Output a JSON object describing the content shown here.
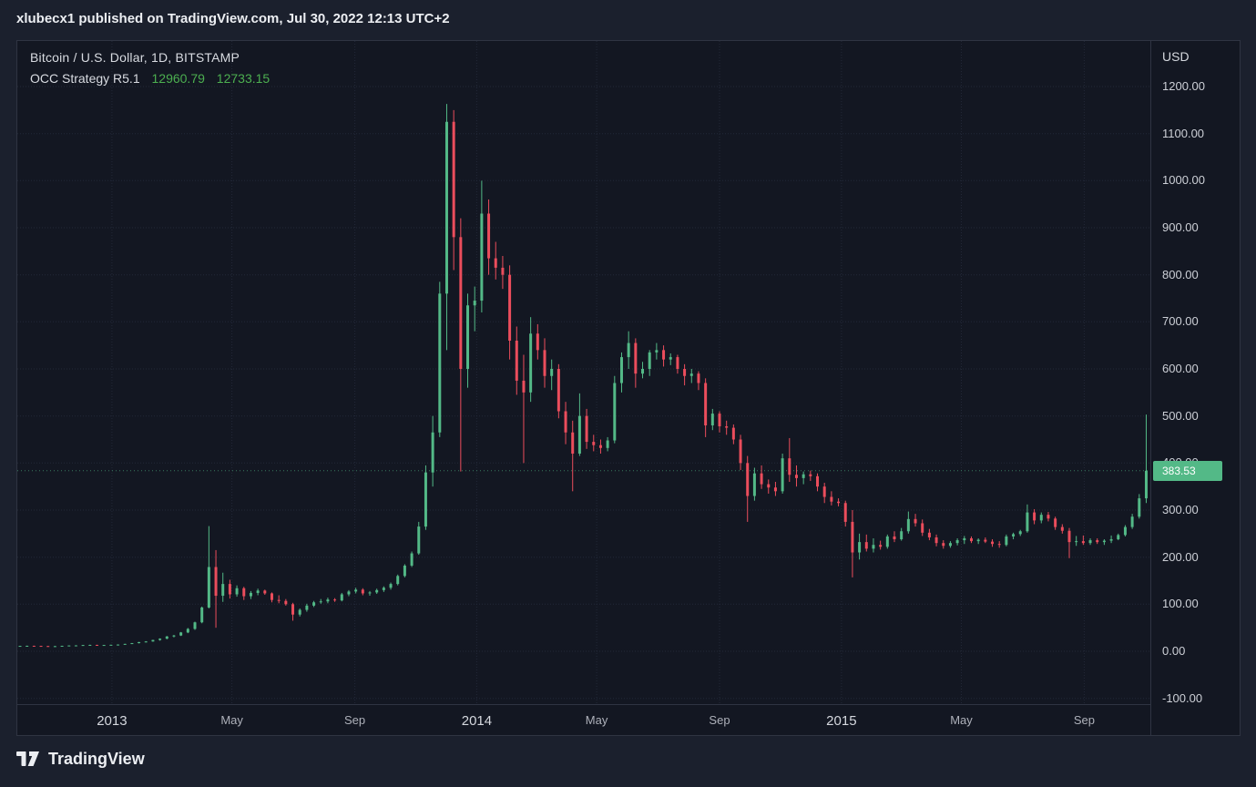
{
  "publish_bar": {
    "text": "xlubecx1 published on TradingView.com, Jul 30, 2022 12:13 UTC+2"
  },
  "legend": {
    "symbol_title": "Bitcoin / U.S. Dollar, 1D, BITSTAMP",
    "strategy_name": "OCC Strategy R5.1",
    "strategy_value_1": "12960.79",
    "strategy_value_2": "12733.15"
  },
  "price_axis": {
    "currency_label": "USD",
    "ticks": [
      "1200.00",
      "1100.00",
      "1000.00",
      "900.00",
      "800.00",
      "700.00",
      "600.00",
      "500.00",
      "400.00",
      "300.00",
      "200.00",
      "100.00",
      "0.00",
      "-100.00"
    ],
    "last_price": "383.53"
  },
  "time_axis": {
    "ticks": [
      {
        "label": "2013",
        "week": 13.14,
        "style": "year"
      },
      {
        "label": "May",
        "week": 30.29,
        "style": "month"
      },
      {
        "label": "Sep",
        "week": 47.86,
        "style": "month"
      },
      {
        "label": "2014",
        "week": 65.29,
        "style": "year"
      },
      {
        "label": "May",
        "week": 82.43,
        "style": "month"
      },
      {
        "label": "Sep",
        "week": 100.0,
        "style": "month"
      },
      {
        "label": "2015",
        "week": 117.43,
        "style": "year"
      },
      {
        "label": "May",
        "week": 134.57,
        "style": "month"
      },
      {
        "label": "Sep",
        "week": 152.14,
        "style": "month"
      }
    ]
  },
  "footer": {
    "brand": "TradingView"
  },
  "colors": {
    "up": "#53b987",
    "down": "#eb4d5c",
    "background": "#131722",
    "panel": "#1b202d",
    "grid": "#232838",
    "text": "#d1d4dc",
    "value_green": "#4caf50"
  },
  "chart_data": {
    "type": "candlestick",
    "title": "Bitcoin / U.S. Dollar, 1D, BITSTAMP",
    "symbol": "Bitcoin / U.S. Dollar",
    "interval": "1D",
    "exchange": "BITSTAMP",
    "unit": "USD",
    "ylim": [
      -100,
      1200
    ],
    "y_tick_step": 100,
    "x_range_labels": [
      "2013",
      "2014",
      "2015"
    ],
    "sampling": "approx weekly values read from chart, Oct 2012 - Nov 2015",
    "last_close": 383.53,
    "ohlc": [
      [
        11.2,
        11.7,
        10.9,
        11.5
      ],
      [
        11.5,
        11.9,
        11.2,
        11.7
      ],
      [
        11.7,
        11.9,
        11.3,
        11.5
      ],
      [
        11.5,
        11.7,
        10.9,
        11.1
      ],
      [
        11.1,
        11.4,
        10.4,
        10.7
      ],
      [
        10.7,
        11.2,
        10.2,
        10.9
      ],
      [
        10.9,
        11.8,
        10.7,
        11.6
      ],
      [
        11.6,
        12.5,
        11.4,
        12.3
      ],
      [
        12.3,
        12.8,
        12.0,
        12.5
      ],
      [
        12.5,
        13.5,
        12.3,
        13.3
      ],
      [
        13.3,
        14.0,
        13.1,
        13.6
      ],
      [
        13.6,
        13.8,
        13.0,
        13.3
      ],
      [
        13.3,
        13.6,
        13.1,
        13.4
      ],
      [
        13.4,
        13.9,
        13.2,
        13.8
      ],
      [
        13.8,
        14.5,
        13.5,
        14.3
      ],
      [
        14.3,
        16.0,
        14.1,
        15.7
      ],
      [
        15.7,
        17.6,
        15.3,
        17.3
      ],
      [
        17.3,
        19.9,
        16.8,
        19.5
      ],
      [
        19.5,
        21.5,
        18.9,
        20.8
      ],
      [
        20.8,
        24.5,
        20.3,
        24.0
      ],
      [
        24.0,
        27.5,
        22.5,
        26.8
      ],
      [
        26.8,
        32.5,
        25.5,
        31.5
      ],
      [
        31.5,
        34.8,
        29.5,
        33.5
      ],
      [
        33.5,
        41.0,
        32.5,
        40.0
      ],
      [
        40.0,
        49.5,
        38.5,
        47.5
      ],
      [
        47.5,
        63.0,
        45.5,
        61.5
      ],
      [
        61.5,
        95.0,
        59.5,
        93.0
      ],
      [
        93.0,
        266.0,
        91.0,
        179.0
      ],
      [
        179,
        215,
        50,
        118
      ],
      [
        118,
        167,
        105,
        143
      ],
      [
        143,
        152,
        112,
        121
      ],
      [
        121,
        140,
        116,
        134
      ],
      [
        134,
        137,
        109,
        117
      ],
      [
        117,
        128,
        111,
        124
      ],
      [
        124,
        133,
        119,
        129
      ],
      [
        129,
        131,
        120,
        123
      ],
      [
        123,
        125,
        104,
        109
      ],
      [
        109,
        119,
        102,
        107
      ],
      [
        107,
        111,
        97,
        100
      ],
      [
        100,
        103,
        65,
        78
      ],
      [
        78,
        91,
        74,
        88
      ],
      [
        88,
        101,
        84,
        97
      ],
      [
        97,
        107,
        94,
        104
      ],
      [
        104,
        111,
        101,
        106
      ],
      [
        106,
        114,
        102,
        110
      ],
      [
        110,
        113,
        105,
        108
      ],
      [
        108,
        124,
        106,
        121
      ],
      [
        121,
        130,
        117,
        127
      ],
      [
        127,
        135,
        123,
        131
      ],
      [
        131,
        134,
        119,
        123
      ],
      [
        123,
        128,
        118,
        125
      ],
      [
        125,
        133,
        122,
        130
      ],
      [
        130,
        138,
        126,
        135
      ],
      [
        135,
        146,
        131,
        143
      ],
      [
        143,
        163,
        140,
        160
      ],
      [
        160,
        185,
        157,
        182
      ],
      [
        182,
        212,
        179,
        208
      ],
      [
        208,
        275,
        205,
        265
      ],
      [
        265,
        395,
        258,
        380
      ],
      [
        380,
        500,
        350,
        465
      ],
      [
        465,
        785,
        455,
        760
      ],
      [
        760,
        1163,
        640,
        1125
      ],
      [
        1125,
        1150,
        810,
        880
      ],
      [
        880,
        920,
        382,
        600
      ],
      [
        600,
        760,
        560,
        735
      ],
      [
        735,
        775,
        680,
        745
      ],
      [
        745,
        1000,
        720,
        930
      ],
      [
        930,
        960,
        800,
        835
      ],
      [
        835,
        870,
        790,
        815
      ],
      [
        815,
        840,
        770,
        800
      ],
      [
        800,
        820,
        620,
        660
      ],
      [
        660,
        690,
        545,
        575
      ],
      [
        575,
        630,
        400,
        550
      ],
      [
        550,
        710,
        530,
        675
      ],
      [
        675,
        695,
        620,
        640
      ],
      [
        640,
        665,
        560,
        585
      ],
      [
        585,
        620,
        555,
        600
      ],
      [
        600,
        610,
        495,
        510
      ],
      [
        510,
        530,
        440,
        465
      ],
      [
        465,
        490,
        340,
        420
      ],
      [
        420,
        548,
        415,
        500
      ],
      [
        500,
        515,
        430,
        445
      ],
      [
        445,
        460,
        425,
        438
      ],
      [
        438,
        450,
        420,
        432
      ],
      [
        432,
        455,
        425,
        448
      ],
      [
        448,
        585,
        442,
        570
      ],
      [
        570,
        635,
        550,
        625
      ],
      [
        625,
        680,
        600,
        655
      ],
      [
        655,
        665,
        560,
        590
      ],
      [
        590,
        615,
        580,
        600
      ],
      [
        600,
        640,
        585,
        635
      ],
      [
        635,
        655,
        620,
        640
      ],
      [
        640,
        650,
        605,
        620
      ],
      [
        620,
        633,
        608,
        625
      ],
      [
        625,
        630,
        590,
        600
      ],
      [
        600,
        610,
        565,
        585
      ],
      [
        585,
        600,
        570,
        590
      ],
      [
        590,
        595,
        555,
        570
      ],
      [
        570,
        580,
        455,
        480
      ],
      [
        480,
        515,
        470,
        505
      ],
      [
        505,
        510,
        465,
        478
      ],
      [
        478,
        490,
        460,
        475
      ],
      [
        475,
        482,
        440,
        450
      ],
      [
        450,
        460,
        385,
        400
      ],
      [
        400,
        415,
        275,
        330
      ],
      [
        330,
        390,
        320,
        378
      ],
      [
        378,
        395,
        345,
        355
      ],
      [
        355,
        365,
        335,
        348
      ],
      [
        348,
        360,
        330,
        340
      ],
      [
        340,
        420,
        335,
        410
      ],
      [
        410,
        453,
        360,
        375
      ],
      [
        375,
        395,
        350,
        368
      ],
      [
        368,
        382,
        355,
        376
      ],
      [
        376,
        384,
        362,
        372
      ],
      [
        372,
        378,
        340,
        350
      ],
      [
        350,
        358,
        315,
        328
      ],
      [
        328,
        340,
        310,
        318
      ],
      [
        318,
        325,
        308,
        315
      ],
      [
        315,
        320,
        265,
        275
      ],
      [
        275,
        300,
        157,
        210
      ],
      [
        210,
        250,
        195,
        232
      ],
      [
        232,
        248,
        212,
        218
      ],
      [
        218,
        240,
        210,
        226
      ],
      [
        226,
        235,
        216,
        222
      ],
      [
        222,
        248,
        218,
        244
      ],
      [
        244,
        255,
        232,
        238
      ],
      [
        238,
        262,
        235,
        255
      ],
      [
        255,
        297,
        250,
        281
      ],
      [
        281,
        292,
        265,
        272
      ],
      [
        272,
        280,
        245,
        252
      ],
      [
        252,
        260,
        236,
        242
      ],
      [
        242,
        248,
        223,
        230
      ],
      [
        230,
        236,
        218,
        224
      ],
      [
        224,
        234,
        220,
        230
      ],
      [
        230,
        240,
        225,
        236
      ],
      [
        236,
        245,
        228,
        240
      ],
      [
        240,
        244,
        230,
        234
      ],
      [
        234,
        240,
        228,
        237
      ],
      [
        237,
        242,
        230,
        233
      ],
      [
        233,
        238,
        222,
        228
      ],
      [
        228,
        234,
        220,
        226
      ],
      [
        226,
        248,
        223,
        244
      ],
      [
        244,
        252,
        238,
        249
      ],
      [
        249,
        258,
        245,
        255
      ],
      [
        255,
        312,
        252,
        295
      ],
      [
        295,
        302,
        270,
        278
      ],
      [
        278,
        295,
        272,
        290
      ],
      [
        290,
        296,
        276,
        282
      ],
      [
        282,
        286,
        258,
        264
      ],
      [
        264,
        270,
        250,
        256
      ],
      [
        256,
        262,
        198,
        232
      ],
      [
        232,
        245,
        224,
        234
      ],
      [
        234,
        246,
        226,
        230
      ],
      [
        230,
        240,
        226,
        236
      ],
      [
        236,
        240,
        228,
        232
      ],
      [
        232,
        238,
        226,
        235
      ],
      [
        235,
        246,
        230,
        238
      ],
      [
        238,
        250,
        236,
        247
      ],
      [
        247,
        268,
        244,
        264
      ],
      [
        264,
        292,
        260,
        286
      ],
      [
        286,
        334,
        282,
        325
      ],
      [
        325,
        503,
        315,
        383.53
      ]
    ]
  }
}
